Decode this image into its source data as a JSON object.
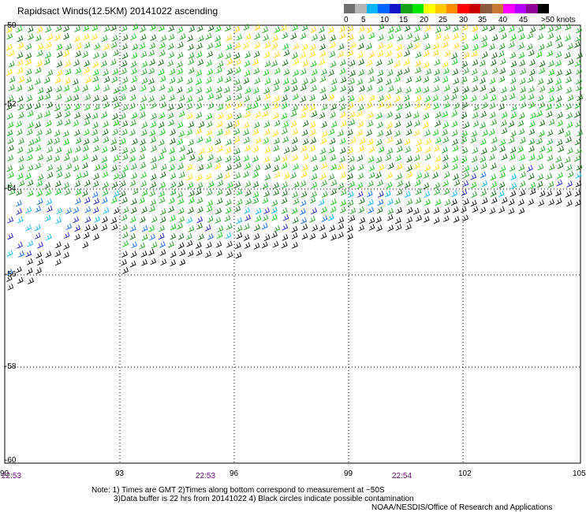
{
  "title": "Rapidsact Winds(12.5KM) 20141022 ascending",
  "legend": {
    "colors": [
      "#6e6e6e",
      "#b4b4b4",
      "#00b4ff",
      "#0064ff",
      "#1414c8",
      "#14a014",
      "#00e600",
      "#ffff00",
      "#ffc800",
      "#ff8c00",
      "#ff0000",
      "#c80000",
      "#8c5a3c",
      "#c87832",
      "#ff00ff",
      "#b400ff",
      "#8c0096",
      "#000000"
    ],
    "labels": [
      "0",
      "5",
      "10",
      "15",
      "20",
      "25",
      "30",
      "35",
      "40",
      "45",
      ">50 knots"
    ]
  },
  "axes": {
    "x_ticks": [
      "90",
      "93",
      "96",
      "99",
      "102",
      "105"
    ],
    "y_ticks": [
      "-52",
      "-54",
      "-56",
      "-58",
      "-60"
    ],
    "y_top_label": "-50",
    "times": [
      "22:53",
      "22:53",
      "22:54"
    ]
  },
  "notes": {
    "line1": "Note: 1) Times are GMT 2)Times along bottom correspond to measurement at ~50S",
    "line2": "3)Data buffer is 22 hrs from 20141022 4) Black circles indicate possible contamination",
    "line3": "NOAA/NESDIS/Office of Research and Applications"
  }
}
